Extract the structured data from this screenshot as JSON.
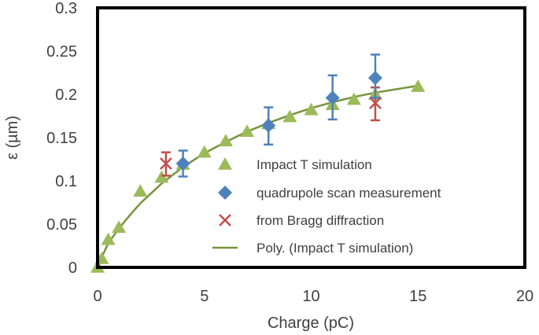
{
  "chart_data": {
    "type": "scatter",
    "title": "",
    "xlabel": "Charge (pC)",
    "ylabel": "ε (µm)",
    "xlim": [
      0,
      20
    ],
    "ylim": [
      0,
      0.3
    ],
    "x_ticks": [
      "0",
      "5",
      "10",
      "15",
      "20"
    ],
    "y_ticks": [
      "0",
      "0.05",
      "0.1",
      "0.15",
      "0.2",
      "0.25",
      "0.3"
    ],
    "grid": false,
    "legend_position": "inside-right",
    "series": [
      {
        "name": "Impact T simulation",
        "marker": "triangle",
        "color": "#9BBB59",
        "points": [
          {
            "x": 0,
            "y": 0
          },
          {
            "x": 0.2,
            "y": 0.01
          },
          {
            "x": 0.5,
            "y": 0.032
          },
          {
            "x": 1,
            "y": 0.046
          },
          {
            "x": 2,
            "y": 0.088
          },
          {
            "x": 3,
            "y": 0.104
          },
          {
            "x": 4,
            "y": 0.119
          },
          {
            "x": 5,
            "y": 0.133
          },
          {
            "x": 6,
            "y": 0.146
          },
          {
            "x": 7,
            "y": 0.157
          },
          {
            "x": 8,
            "y": 0.166
          },
          {
            "x": 9,
            "y": 0.174
          },
          {
            "x": 10,
            "y": 0.182
          },
          {
            "x": 11,
            "y": 0.188
          },
          {
            "x": 12,
            "y": 0.194
          },
          {
            "x": 13,
            "y": 0.2
          },
          {
            "x": 15,
            "y": 0.209
          }
        ]
      },
      {
        "name": "quadrupole scan measurement",
        "marker": "diamond",
        "color": "#4F81BD",
        "points": [
          {
            "x": 4,
            "y": 0.12,
            "err_lo": 0.105,
            "err_hi": 0.135
          },
          {
            "x": 8,
            "y": 0.164,
            "err_lo": 0.142,
            "err_hi": 0.185
          },
          {
            "x": 11,
            "y": 0.196,
            "err_lo": 0.171,
            "err_hi": 0.222
          },
          {
            "x": 13,
            "y": 0.219,
            "err_lo": 0.196,
            "err_hi": 0.246
          }
        ]
      },
      {
        "name": "from Bragg diffraction",
        "marker": "x",
        "color": "#C0504D",
        "points": [
          {
            "x": 3.2,
            "y": 0.12,
            "err_lo": 0.106,
            "err_hi": 0.133
          },
          {
            "x": 13,
            "y": 0.19,
            "err_lo": 0.17,
            "err_hi": 0.208
          }
        ]
      },
      {
        "name": "Poly. (Impact T simulation)",
        "marker": "line",
        "color": "#77933C",
        "points": [
          {
            "x": 0.05,
            "y": 0.0
          },
          {
            "x": 0.2,
            "y": 0.012
          },
          {
            "x": 0.5,
            "y": 0.028
          },
          {
            "x": 1,
            "y": 0.045
          },
          {
            "x": 1.5,
            "y": 0.06
          },
          {
            "x": 2,
            "y": 0.074
          },
          {
            "x": 3,
            "y": 0.097
          },
          {
            "x": 4,
            "y": 0.116
          },
          {
            "x": 5,
            "y": 0.132
          },
          {
            "x": 6,
            "y": 0.145
          },
          {
            "x": 7,
            "y": 0.157
          },
          {
            "x": 8,
            "y": 0.167
          },
          {
            "x": 9,
            "y": 0.176
          },
          {
            "x": 10,
            "y": 0.184
          },
          {
            "x": 11,
            "y": 0.191
          },
          {
            "x": 12,
            "y": 0.197
          },
          {
            "x": 13,
            "y": 0.202
          },
          {
            "x": 14,
            "y": 0.206
          },
          {
            "x": 15,
            "y": 0.21
          }
        ]
      }
    ]
  }
}
